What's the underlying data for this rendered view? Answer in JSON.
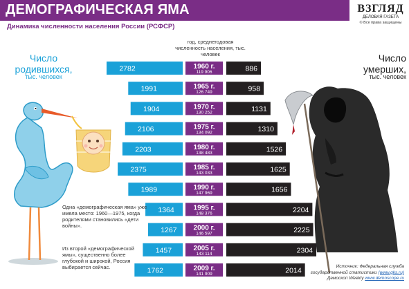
{
  "header": {
    "title": "ДЕМОГРАФИЧЕСКАЯ ЯМА",
    "subtitle": "Динамика численности населения России (РСФСР)"
  },
  "logo": {
    "name": "ВЗГЛЯД",
    "sub": "ДЕЛОВАЯ ГАЗЕТА",
    "rights": "© Все права защищены"
  },
  "births": {
    "title": "Число родившихся,",
    "unit": "тыс. человек"
  },
  "deaths": {
    "title": "Число умерших,",
    "unit": "тыс. человек"
  },
  "column_header": "год, среднегодовая численность населения, тыс. человек",
  "notes": [
    "Одна «демографическая яма» уже имела место: 1960—1975, когда родителями становились «дети войны».",
    "Из второй «демографической ямы», существенно более глубокой и широкой, Россия выбирается сейчас."
  ],
  "source": {
    "line1": "Источник: Федеральная служба",
    "line2_prefix": "государственной статистики ",
    "line2_link": "(www.gks.ru)",
    "line3_prefix": "Демоскоп Weekly ",
    "line3_link": "www.demoscope.ru"
  },
  "colors": {
    "births": "#1aa1d8",
    "deaths": "#231f20",
    "year": "#7a2d86",
    "title_bar": "#7a2d86"
  },
  "chart_data": {
    "type": "bar",
    "title": "ДЕМОГРАФИЧЕСКАЯ ЯМА",
    "subtitle": "Динамика численности населения России (РСФСР)",
    "categories": [
      "1960 г.",
      "1965 г.",
      "1970 г.",
      "1975 г.",
      "1980 г.",
      "1985 г.",
      "1990 г.",
      "1995 г.",
      "2000 г.",
      "2005 г.",
      "2009 г."
    ],
    "population": [
      "119 906",
      "126 749",
      "130 252",
      "134 092",
      "138 483",
      "143 033",
      "147 969",
      "148 376",
      "146 597",
      "143 114",
      "141 909"
    ],
    "series": [
      {
        "name": "Число родившихся, тыс. человек",
        "values": [
          2782,
          1991,
          1904,
          2106,
          2203,
          2375,
          1989,
          1364,
          1267,
          1457,
          1762
        ]
      },
      {
        "name": "Число умерших, тыс. человек",
        "values": [
          886,
          958,
          1131,
          1310,
          1526,
          1625,
          1656,
          2204,
          2225,
          2304,
          2014
        ]
      }
    ],
    "grid": false,
    "legend": "left and right text labels"
  }
}
